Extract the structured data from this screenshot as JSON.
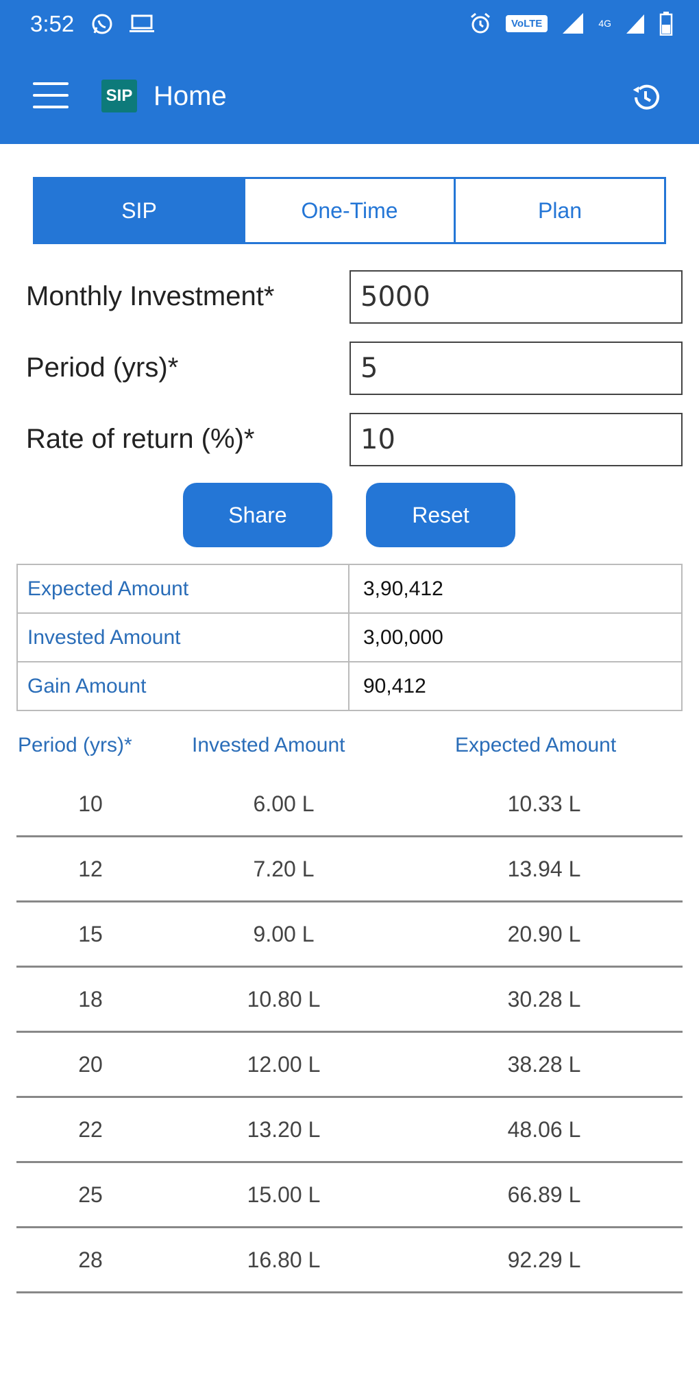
{
  "status_bar": {
    "time": "3:52",
    "network_badge": "VoLTE",
    "network_type": "4G"
  },
  "toolbar": {
    "title": "Home",
    "logo_text": "SIP"
  },
  "tabs": [
    {
      "label": "SIP",
      "active": true
    },
    {
      "label": "One-Time",
      "active": false
    },
    {
      "label": "Plan",
      "active": false
    }
  ],
  "form": {
    "monthly_investment": {
      "label": "Monthly Investment*",
      "value": "5000"
    },
    "period": {
      "label": "Period (yrs)*",
      "value": "5"
    },
    "rate": {
      "label": "Rate of return (%)*",
      "value": "10"
    }
  },
  "buttons": {
    "share": "Share",
    "reset": "Reset"
  },
  "summary": [
    {
      "label": "Expected Amount",
      "value": "3,90,412"
    },
    {
      "label": "Invested Amount",
      "value": "3,00,000"
    },
    {
      "label": "Gain Amount",
      "value": "90,412"
    }
  ],
  "projection": {
    "headers": [
      "Period (yrs)*",
      "Invested Amount",
      "Expected Amount"
    ],
    "rows": [
      [
        "10",
        "6.00 L",
        "10.33 L"
      ],
      [
        "12",
        "7.20 L",
        "13.94 L"
      ],
      [
        "15",
        "9.00 L",
        "20.90 L"
      ],
      [
        "18",
        "10.80 L",
        "30.28 L"
      ],
      [
        "20",
        "12.00 L",
        "38.28 L"
      ],
      [
        "22",
        "13.20 L",
        "48.06 L"
      ],
      [
        "25",
        "15.00 L",
        "66.89 L"
      ],
      [
        "28",
        "16.80 L",
        "92.29 L"
      ]
    ]
  },
  "colors": {
    "primary": "#2476d6",
    "label_blue": "#2a6db8"
  }
}
